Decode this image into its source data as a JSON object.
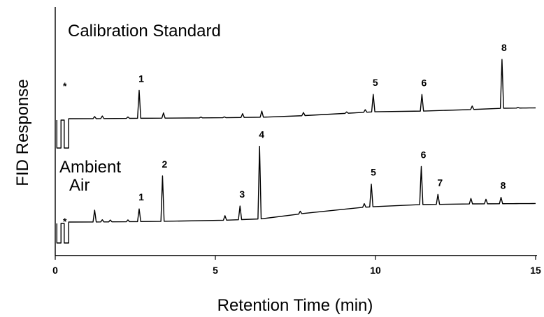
{
  "chart_data": {
    "type": "line",
    "title": "",
    "xlabel": "Retention Time (min)",
    "ylabel": "FID Response",
    "xlim": [
      0,
      15
    ],
    "xticks": [
      0,
      5,
      10,
      15
    ],
    "xtick_labels": [
      "0",
      "5",
      "10",
      "15"
    ],
    "grid": false,
    "series": [
      {
        "name": "Calibration Standard",
        "title_lines": [
          "Calibration Standard"
        ],
        "injection_marker": "*",
        "offset": 1.0,
        "baseline": [
          [
            0.05,
            0.0
          ],
          [
            1.0,
            0.0
          ],
          [
            3.0,
            0.03
          ],
          [
            5.0,
            0.05
          ],
          [
            7.0,
            0.1
          ],
          [
            9.0,
            0.3
          ],
          [
            10.0,
            0.4
          ],
          [
            12.0,
            0.45
          ],
          [
            14.0,
            0.6
          ],
          [
            15.0,
            0.62
          ]
        ],
        "peaks": [
          {
            "x": 1.23,
            "h": 0.12
          },
          {
            "x": 1.47,
            "h": 0.15
          },
          {
            "x": 2.27,
            "h": 0.08
          },
          {
            "x": 2.62,
            "h": 1.6,
            "label": "1"
          },
          {
            "x": 3.38,
            "h": 0.3
          },
          {
            "x": 4.55,
            "h": 0.05
          },
          {
            "x": 5.28,
            "h": 0.05
          },
          {
            "x": 5.85,
            "h": 0.22
          },
          {
            "x": 6.45,
            "h": 0.35
          },
          {
            "x": 7.75,
            "h": 0.18
          },
          {
            "x": 9.1,
            "h": 0.08
          },
          {
            "x": 9.68,
            "h": 0.15
          },
          {
            "x": 9.93,
            "h": 1.0,
            "label": "5"
          },
          {
            "x": 11.45,
            "h": 0.95,
            "label": "6"
          },
          {
            "x": 13.02,
            "h": 0.2
          },
          {
            "x": 13.95,
            "h": 2.8,
            "label": "8"
          },
          {
            "x": 14.45,
            "h": 0.04
          }
        ]
      },
      {
        "name": "Ambient Air",
        "title_lines": [
          "Ambient",
          "Air"
        ],
        "injection_marker": "*",
        "offset": 0.0,
        "baseline": [
          [
            0.05,
            0.0
          ],
          [
            1.0,
            0.0
          ],
          [
            3.0,
            0.03
          ],
          [
            5.0,
            0.08
          ],
          [
            6.8,
            0.2
          ],
          [
            8.0,
            0.55
          ],
          [
            9.5,
            0.8
          ],
          [
            11.0,
            0.95
          ],
          [
            13.0,
            1.0
          ],
          [
            15.0,
            1.02
          ]
        ],
        "peaks": [
          {
            "x": 1.23,
            "h": 0.65
          },
          {
            "x": 1.47,
            "h": 0.12
          },
          {
            "x": 1.72,
            "h": 0.1
          },
          {
            "x": 2.27,
            "h": 0.1
          },
          {
            "x": 2.62,
            "h": 0.7,
            "label": "1"
          },
          {
            "x": 3.35,
            "h": 2.5,
            "label": "2"
          },
          {
            "x": 5.3,
            "h": 0.25
          },
          {
            "x": 5.77,
            "h": 0.75,
            "label": "3"
          },
          {
            "x": 6.38,
            "h": 4.0,
            "label": "4"
          },
          {
            "x": 7.65,
            "h": 0.15
          },
          {
            "x": 9.65,
            "h": 0.2
          },
          {
            "x": 9.87,
            "h": 1.25,
            "label": "5"
          },
          {
            "x": 11.43,
            "h": 2.1,
            "label": "6"
          },
          {
            "x": 11.95,
            "h": 0.55,
            "label": "7"
          },
          {
            "x": 12.98,
            "h": 0.3
          },
          {
            "x": 13.45,
            "h": 0.25
          },
          {
            "x": 13.92,
            "h": 0.35,
            "label": "8"
          }
        ]
      }
    ]
  }
}
